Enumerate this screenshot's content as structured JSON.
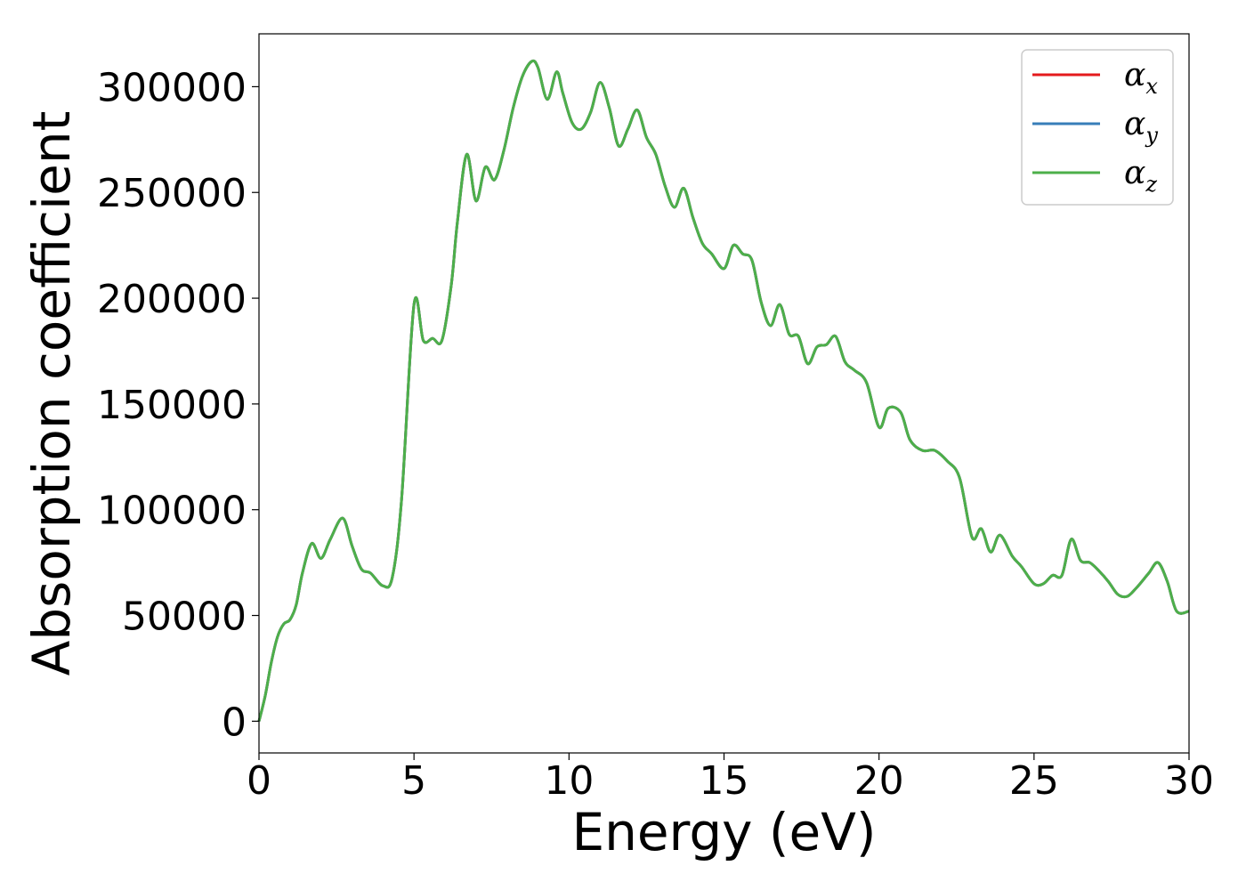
{
  "chart_data": {
    "type": "line",
    "title": "",
    "xlabel": "Energy (eV)",
    "ylabel": "Absorption coefficient",
    "xlim": [
      0,
      30
    ],
    "ylim": [
      -15000,
      325000
    ],
    "xticks": [
      0,
      5,
      10,
      15,
      20,
      25,
      30
    ],
    "xtick_labels": [
      "0",
      "5",
      "10",
      "15",
      "20",
      "25",
      "30"
    ],
    "yticks": [
      0,
      50000,
      100000,
      150000,
      200000,
      250000,
      300000
    ],
    "ytick_labels": [
      "0",
      "50000",
      "100000",
      "150000",
      "200000",
      "250000",
      "300000"
    ],
    "grid": false,
    "legend_position": "top-right",
    "x": [
      0,
      0.2,
      0.4,
      0.6,
      0.8,
      1.0,
      1.2,
      1.4,
      1.7,
      2.0,
      2.3,
      2.7,
      3.0,
      3.3,
      3.6,
      4.0,
      4.3,
      4.6,
      5.0,
      5.3,
      5.6,
      5.9,
      6.2,
      6.4,
      6.7,
      7.0,
      7.3,
      7.6,
      7.9,
      8.2,
      8.5,
      8.8,
      9.0,
      9.3,
      9.6,
      9.8,
      10.1,
      10.4,
      10.7,
      11.0,
      11.3,
      11.6,
      11.9,
      12.2,
      12.5,
      12.8,
      13.1,
      13.4,
      13.7,
      14.0,
      14.3,
      14.6,
      15.0,
      15.3,
      15.6,
      15.9,
      16.2,
      16.5,
      16.8,
      17.1,
      17.4,
      17.7,
      18.0,
      18.3,
      18.6,
      18.9,
      19.2,
      19.6,
      20.0,
      20.3,
      20.7,
      21.0,
      21.4,
      21.8,
      22.2,
      22.6,
      23.0,
      23.3,
      23.6,
      23.9,
      24.3,
      24.6,
      25.0,
      25.3,
      25.6,
      25.9,
      26.2,
      26.5,
      26.8,
      27.1,
      27.4,
      27.7,
      28.0,
      28.3,
      28.7,
      29.0,
      29.3,
      29.6,
      30.0
    ],
    "series": [
      {
        "name": "α",
        "subscript": "x",
        "color": "#e41a1c",
        "values": [
          0,
          12000,
          28000,
          40000,
          46000,
          48000,
          55000,
          70000,
          84000,
          77000,
          86000,
          96000,
          83000,
          72000,
          70000,
          64000,
          68000,
          105000,
          197000,
          180000,
          181000,
          180000,
          206000,
          236000,
          268000,
          246000,
          262000,
          256000,
          270000,
          290000,
          305000,
          312000,
          309000,
          294000,
          307000,
          297000,
          283000,
          280000,
          288000,
          302000,
          290000,
          272000,
          280000,
          289000,
          276000,
          268000,
          253000,
          243000,
          252000,
          238000,
          226000,
          221000,
          214000,
          225000,
          221000,
          218000,
          198000,
          187000,
          197000,
          183000,
          182000,
          169000,
          177000,
          178000,
          182000,
          170000,
          166000,
          160000,
          139000,
          148000,
          146000,
          133000,
          128000,
          128000,
          123000,
          115000,
          87000,
          91000,
          80000,
          88000,
          78000,
          73000,
          65000,
          65000,
          69000,
          69000,
          86000,
          76000,
          75000,
          71000,
          66000,
          60000,
          59000,
          63000,
          70000,
          75000,
          66000,
          52000,
          52000
        ]
      },
      {
        "name": "α",
        "subscript": "y",
        "color": "#377eb8",
        "values": [
          0,
          12000,
          28000,
          40000,
          46000,
          48000,
          55000,
          70000,
          84000,
          77000,
          86000,
          96000,
          83000,
          72000,
          70000,
          64000,
          68000,
          105000,
          197000,
          180000,
          181000,
          180000,
          206000,
          236000,
          268000,
          246000,
          262000,
          256000,
          270000,
          290000,
          305000,
          312000,
          309000,
          294000,
          307000,
          297000,
          283000,
          280000,
          288000,
          302000,
          290000,
          272000,
          280000,
          289000,
          276000,
          268000,
          253000,
          243000,
          252000,
          238000,
          226000,
          221000,
          214000,
          225000,
          221000,
          218000,
          198000,
          187000,
          197000,
          183000,
          182000,
          169000,
          177000,
          178000,
          182000,
          170000,
          166000,
          160000,
          139000,
          148000,
          146000,
          133000,
          128000,
          128000,
          123000,
          115000,
          87000,
          91000,
          80000,
          88000,
          78000,
          73000,
          65000,
          65000,
          69000,
          69000,
          86000,
          76000,
          75000,
          71000,
          66000,
          60000,
          59000,
          63000,
          70000,
          75000,
          66000,
          52000,
          52000
        ]
      },
      {
        "name": "α",
        "subscript": "z",
        "color": "#4daf4a",
        "values": [
          0,
          12000,
          28000,
          40000,
          46000,
          48000,
          55000,
          70000,
          84000,
          77000,
          86000,
          96000,
          83000,
          72000,
          70000,
          64000,
          68000,
          105000,
          197000,
          180000,
          181000,
          180000,
          206000,
          236000,
          268000,
          246000,
          262000,
          256000,
          270000,
          290000,
          305000,
          312000,
          309000,
          294000,
          307000,
          297000,
          283000,
          280000,
          288000,
          302000,
          290000,
          272000,
          280000,
          289000,
          276000,
          268000,
          253000,
          243000,
          252000,
          238000,
          226000,
          221000,
          214000,
          225000,
          221000,
          218000,
          198000,
          187000,
          197000,
          183000,
          182000,
          169000,
          177000,
          178000,
          182000,
          170000,
          166000,
          160000,
          139000,
          148000,
          146000,
          133000,
          128000,
          128000,
          123000,
          115000,
          87000,
          91000,
          80000,
          88000,
          78000,
          73000,
          65000,
          65000,
          69000,
          69000,
          86000,
          76000,
          75000,
          71000,
          66000,
          60000,
          59000,
          63000,
          70000,
          75000,
          66000,
          52000,
          52000
        ]
      }
    ]
  }
}
